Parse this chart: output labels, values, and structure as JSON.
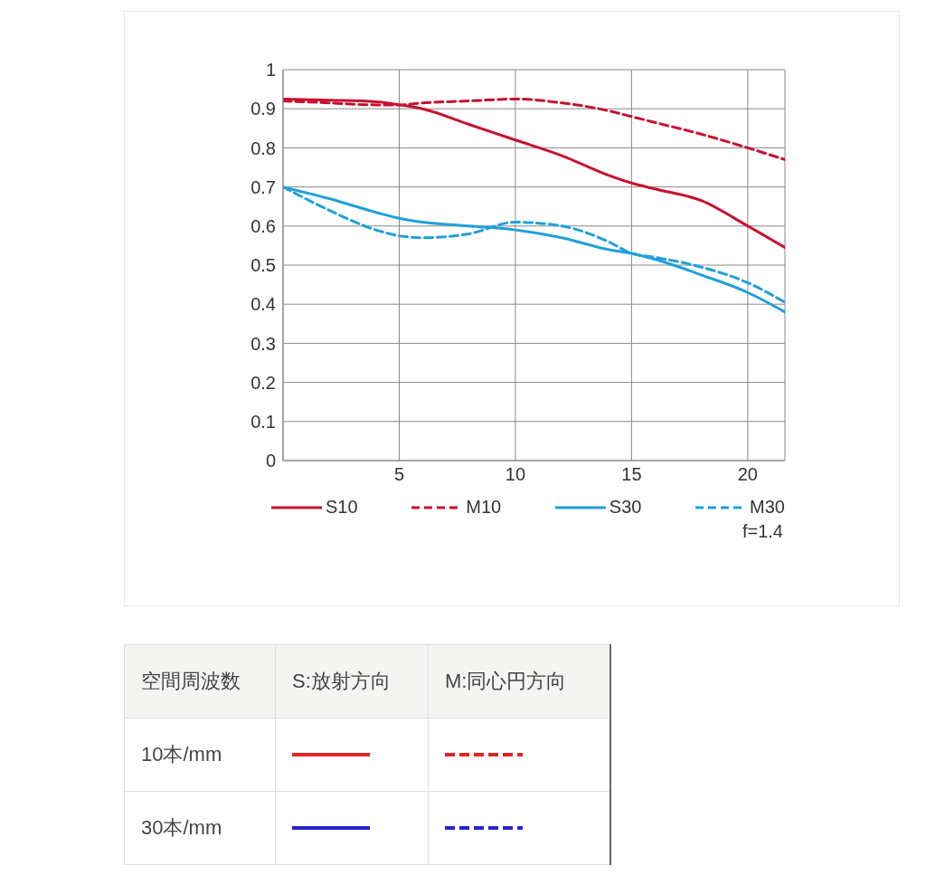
{
  "chart_data": {
    "type": "line",
    "x": [
      0,
      2,
      4,
      5,
      6,
      8,
      10,
      12,
      14,
      15,
      16,
      18,
      20,
      21.6
    ],
    "series": [
      {
        "name": "S10",
        "color": "#c8102e",
        "line_style": "solid",
        "values": [
          0.925,
          0.922,
          0.918,
          0.91,
          0.9,
          0.86,
          0.82,
          0.78,
          0.73,
          0.71,
          0.695,
          0.665,
          0.6,
          0.545
        ]
      },
      {
        "name": "M10",
        "color": "#c8102e",
        "line_style": "dashed",
        "values": [
          0.92,
          0.915,
          0.91,
          0.91,
          0.915,
          0.92,
          0.925,
          0.915,
          0.895,
          0.88,
          0.865,
          0.835,
          0.8,
          0.77
        ]
      },
      {
        "name": "S30",
        "color": "#1fa0d8",
        "line_style": "solid",
        "values": [
          0.7,
          0.67,
          0.635,
          0.62,
          0.61,
          0.6,
          0.59,
          0.57,
          0.54,
          0.53,
          0.515,
          0.475,
          0.43,
          0.38
        ]
      },
      {
        "name": "M30",
        "color": "#1fa0d8",
        "line_style": "dashed",
        "values": [
          0.7,
          0.64,
          0.59,
          0.575,
          0.57,
          0.58,
          0.61,
          0.6,
          0.56,
          0.53,
          0.52,
          0.495,
          0.455,
          0.405
        ]
      }
    ],
    "xlim": [
      0,
      21.6
    ],
    "xticks": [
      5,
      10,
      15,
      20
    ],
    "ylim": [
      0,
      1
    ],
    "yticks": [
      0,
      0.1,
      0.2,
      0.3,
      0.4,
      0.5,
      0.6,
      0.7,
      0.8,
      0.9,
      1
    ],
    "grid": true,
    "legend": "bottom",
    "marker": "none",
    "annotations": [
      "f=1.4",
      "空間周波数",
      "S:放射方向",
      "M:同心円方向",
      "10本/mm",
      "30本/mm"
    ]
  }
}
